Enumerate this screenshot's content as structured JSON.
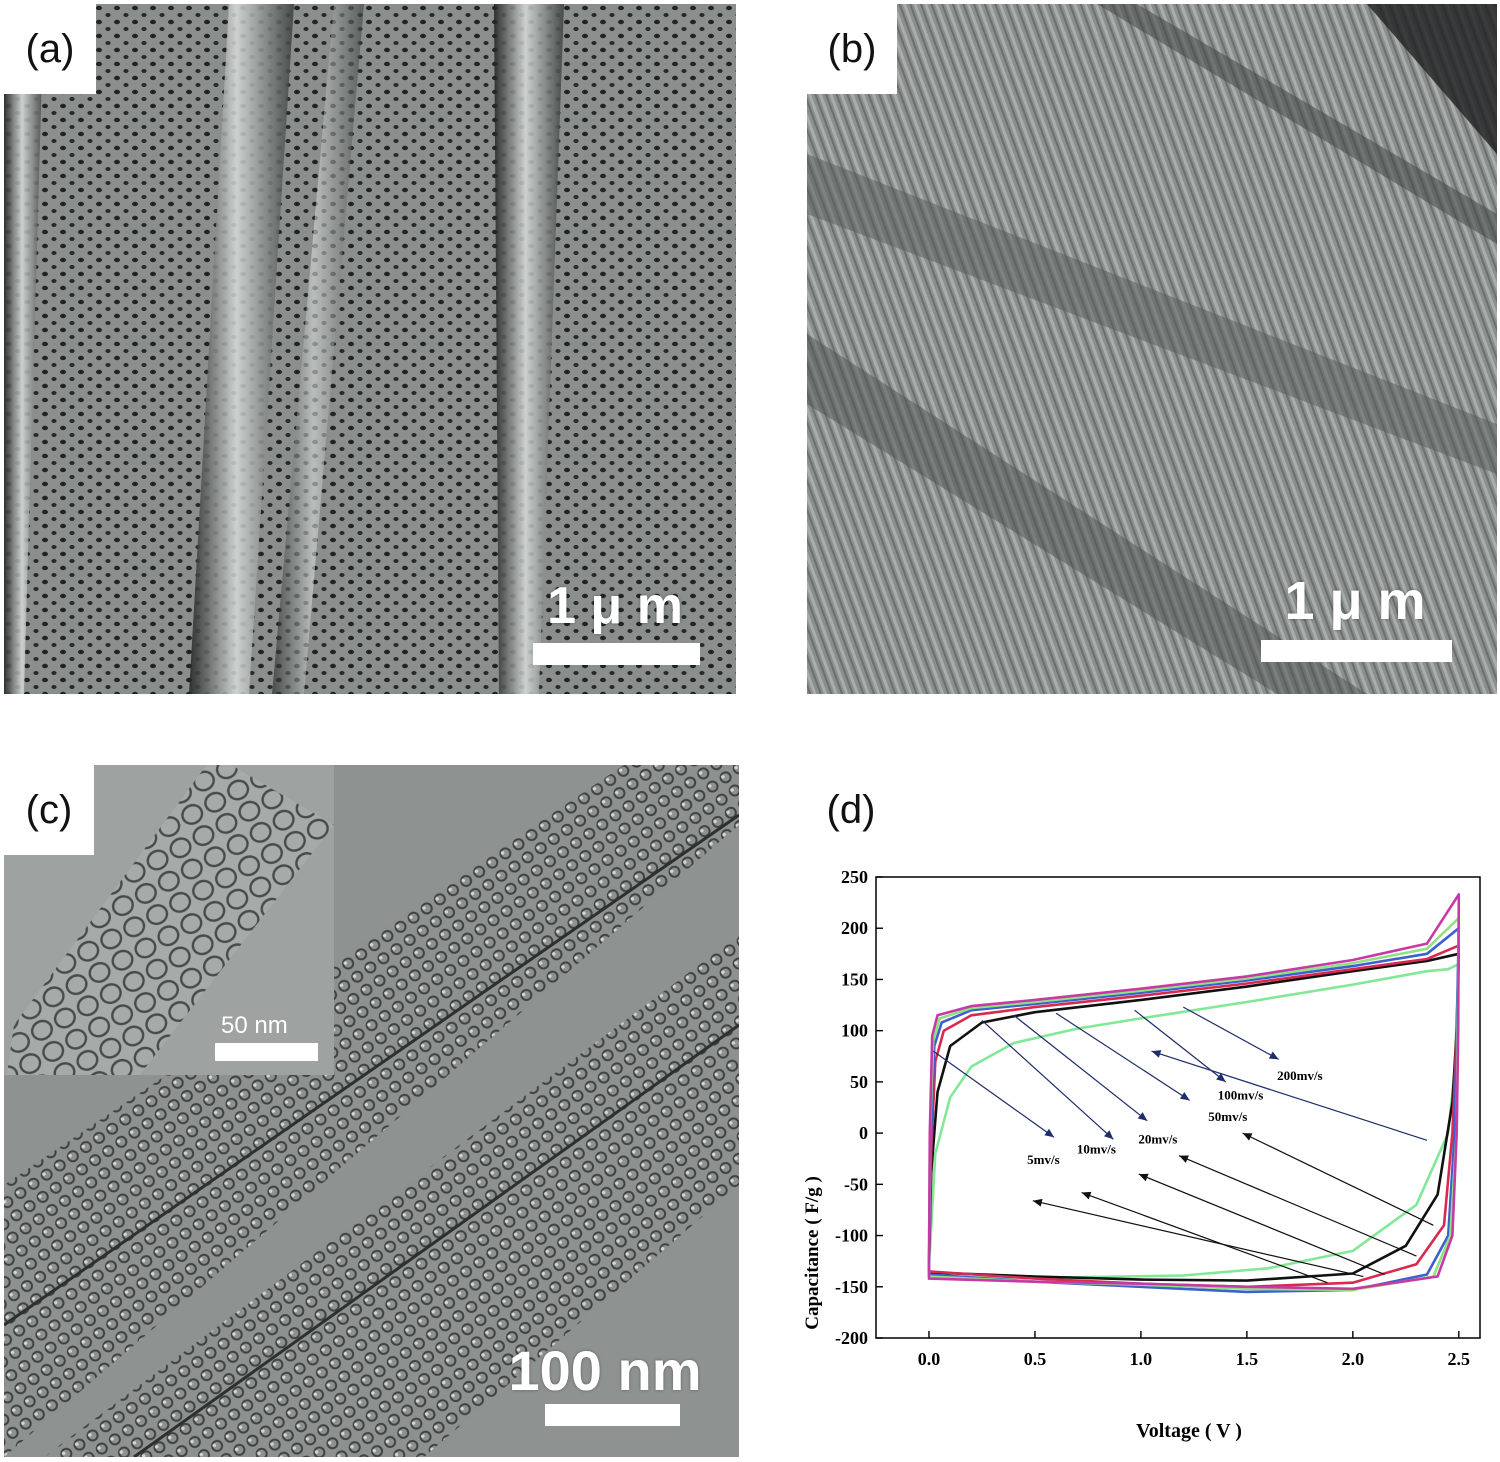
{
  "panels": {
    "a": {
      "label": "(a)",
      "scale": "1 μ m"
    },
    "b": {
      "label": "(b)",
      "scale": "1 μ m"
    },
    "c": {
      "label": "(c)",
      "scale": "100 nm",
      "inset_scale": "50 nm"
    },
    "d": {
      "label": "(d)"
    }
  },
  "chart_data": {
    "type": "line",
    "title": "",
    "xlabel": "Voltage ( V )",
    "ylabel": "Capacitance ( F/g )",
    "xlim": [
      -0.25,
      2.6
    ],
    "ylim": [
      -200,
      250
    ],
    "xticks": [
      "0.0",
      "0.5",
      "1.0",
      "1.5",
      "2.0",
      "2.5"
    ],
    "yticks": [
      "-200",
      "-150",
      "-100",
      "-50",
      "0",
      "50",
      "100",
      "150",
      "200",
      "250"
    ],
    "grid": false,
    "legend": "in-plot annotations with arrows",
    "series": [
      {
        "name": "5mv/s",
        "color": "#82e897",
        "upper": [
          [
            0.0,
            -130
          ],
          [
            0.03,
            -20
          ],
          [
            0.1,
            35
          ],
          [
            0.2,
            65
          ],
          [
            0.4,
            88
          ],
          [
            0.7,
            102
          ],
          [
            1.0,
            112
          ],
          [
            1.5,
            128
          ],
          [
            2.0,
            145
          ],
          [
            2.35,
            158
          ],
          [
            2.45,
            160
          ],
          [
            2.5,
            165
          ]
        ],
        "lower": [
          [
            2.5,
            165
          ],
          [
            2.48,
            60
          ],
          [
            2.45,
            0
          ],
          [
            2.3,
            -70
          ],
          [
            2.0,
            -115
          ],
          [
            1.6,
            -132
          ],
          [
            1.2,
            -139
          ],
          [
            0.6,
            -141
          ],
          [
            0.2,
            -141
          ],
          [
            0.0,
            -140
          ]
        ]
      },
      {
        "name": "10mv/s",
        "color": "#111111",
        "upper": [
          [
            0.0,
            -130
          ],
          [
            0.01,
            -40
          ],
          [
            0.04,
            40
          ],
          [
            0.1,
            85
          ],
          [
            0.25,
            108
          ],
          [
            0.5,
            118
          ],
          [
            1.0,
            130
          ],
          [
            1.5,
            143
          ],
          [
            2.0,
            158
          ],
          [
            2.35,
            168
          ],
          [
            2.5,
            175
          ]
        ],
        "lower": [
          [
            2.5,
            175
          ],
          [
            2.49,
            100
          ],
          [
            2.47,
            30
          ],
          [
            2.4,
            -60
          ],
          [
            2.25,
            -110
          ],
          [
            2.0,
            -137
          ],
          [
            1.5,
            -144
          ],
          [
            1.0,
            -143
          ],
          [
            0.5,
            -140
          ],
          [
            0.0,
            -136
          ]
        ]
      },
      {
        "name": "20mv/s",
        "color": "#d8294f",
        "upper": [
          [
            0.0,
            -128
          ],
          [
            0.01,
            -20
          ],
          [
            0.03,
            70
          ],
          [
            0.07,
            100
          ],
          [
            0.2,
            115
          ],
          [
            0.5,
            123
          ],
          [
            1.0,
            134
          ],
          [
            1.5,
            146
          ],
          [
            2.0,
            160
          ],
          [
            2.35,
            170
          ],
          [
            2.5,
            183
          ]
        ],
        "lower": [
          [
            2.5,
            183
          ],
          [
            2.49,
            100
          ],
          [
            2.47,
            0
          ],
          [
            2.43,
            -90
          ],
          [
            2.3,
            -128
          ],
          [
            2.0,
            -146
          ],
          [
            1.5,
            -150
          ],
          [
            1.0,
            -147
          ],
          [
            0.5,
            -142
          ],
          [
            0.0,
            -135
          ]
        ]
      },
      {
        "name": "50mv/s",
        "color": "#3d5fd0",
        "upper": [
          [
            0.0,
            -127
          ],
          [
            0.01,
            0
          ],
          [
            0.025,
            85
          ],
          [
            0.06,
            108
          ],
          [
            0.2,
            120
          ],
          [
            0.5,
            126
          ],
          [
            1.0,
            137
          ],
          [
            1.5,
            149
          ],
          [
            2.0,
            163
          ],
          [
            2.35,
            175
          ],
          [
            2.5,
            200
          ]
        ],
        "lower": [
          [
            2.5,
            200
          ],
          [
            2.49,
            100
          ],
          [
            2.48,
            0
          ],
          [
            2.45,
            -100
          ],
          [
            2.35,
            -138
          ],
          [
            2.0,
            -153
          ],
          [
            1.5,
            -155
          ],
          [
            1.0,
            -150
          ],
          [
            0.5,
            -145
          ],
          [
            0.0,
            -138
          ]
        ]
      },
      {
        "name": "100mv/s",
        "color": "#8ee27f",
        "upper": [
          [
            0.0,
            -127
          ],
          [
            0.005,
            0
          ],
          [
            0.02,
            90
          ],
          [
            0.05,
            112
          ],
          [
            0.2,
            122
          ],
          [
            0.5,
            128
          ],
          [
            1.0,
            139
          ],
          [
            1.5,
            151
          ],
          [
            2.0,
            166
          ],
          [
            2.35,
            180
          ],
          [
            2.5,
            210
          ]
        ],
        "lower": [
          [
            2.5,
            210
          ],
          [
            2.495,
            100
          ],
          [
            2.49,
            0
          ],
          [
            2.46,
            -100
          ],
          [
            2.38,
            -140
          ],
          [
            2.0,
            -153
          ],
          [
            1.5,
            -152
          ],
          [
            1.0,
            -148
          ],
          [
            0.5,
            -145
          ],
          [
            0.0,
            -140
          ]
        ]
      },
      {
        "name": "200mv/s",
        "color": "#c73aa6",
        "upper": [
          [
            0.0,
            -125
          ],
          [
            0.004,
            0
          ],
          [
            0.015,
            95
          ],
          [
            0.04,
            115
          ],
          [
            0.2,
            124
          ],
          [
            0.5,
            130
          ],
          [
            1.0,
            141
          ],
          [
            1.5,
            153
          ],
          [
            2.0,
            169
          ],
          [
            2.35,
            185
          ],
          [
            2.5,
            233
          ]
        ],
        "lower": [
          [
            2.5,
            233
          ],
          [
            2.497,
            100
          ],
          [
            2.49,
            0
          ],
          [
            2.47,
            -100
          ],
          [
            2.4,
            -140
          ],
          [
            2.0,
            -152
          ],
          [
            1.5,
            -150
          ],
          [
            1.0,
            -147
          ],
          [
            0.5,
            -145
          ],
          [
            0.0,
            -142
          ]
        ]
      }
    ],
    "annotations": [
      {
        "text": "200mv/s",
        "x": 1.75,
        "y": 52
      },
      {
        "text": "100mv/s",
        "x": 1.47,
        "y": 33
      },
      {
        "text": "50mv/s",
        "x": 1.41,
        "y": 12
      },
      {
        "text": "20mv/s",
        "x": 1.08,
        "y": -10
      },
      {
        "text": "10mv/s",
        "x": 0.79,
        "y": -20
      },
      {
        "text": "5mv/s",
        "x": 0.54,
        "y": -30
      }
    ],
    "arrows": [
      {
        "color": "#1f2d6b",
        "from": [
          1.2,
          123
        ],
        "to": [
          1.65,
          72
        ]
      },
      {
        "color": "#1f2d6b",
        "from": [
          0.97,
          120
        ],
        "to": [
          1.4,
          50
        ]
      },
      {
        "color": "#1f2d6b",
        "from": [
          0.6,
          117
        ],
        "to": [
          1.23,
          32
        ]
      },
      {
        "color": "#1f2d6b",
        "from": [
          0.4,
          115
        ],
        "to": [
          1.03,
          12
        ]
      },
      {
        "color": "#1f2d6b",
        "from": [
          0.25,
          110
        ],
        "to": [
          0.87,
          -6
        ]
      },
      {
        "color": "#1f2d6b",
        "from": [
          0.02,
          80
        ],
        "to": [
          0.59,
          -4
        ]
      },
      {
        "color": "#1f2d6b",
        "from": [
          2.35,
          -7
        ],
        "to": [
          1.05,
          80
        ]
      },
      {
        "color": "#111111",
        "from": [
          2.38,
          -90
        ],
        "to": [
          1.48,
          0
        ]
      },
      {
        "color": "#111111",
        "from": [
          2.3,
          -120
        ],
        "to": [
          1.18,
          -22
        ]
      },
      {
        "color": "#111111",
        "from": [
          2.15,
          -138
        ],
        "to": [
          0.99,
          -40
        ]
      },
      {
        "color": "#111111",
        "from": [
          1.88,
          -146
        ],
        "to": [
          0.72,
          -58
        ]
      },
      {
        "color": "#111111",
        "from": [
          2.05,
          -140
        ],
        "to": [
          0.49,
          -66
        ]
      }
    ]
  }
}
